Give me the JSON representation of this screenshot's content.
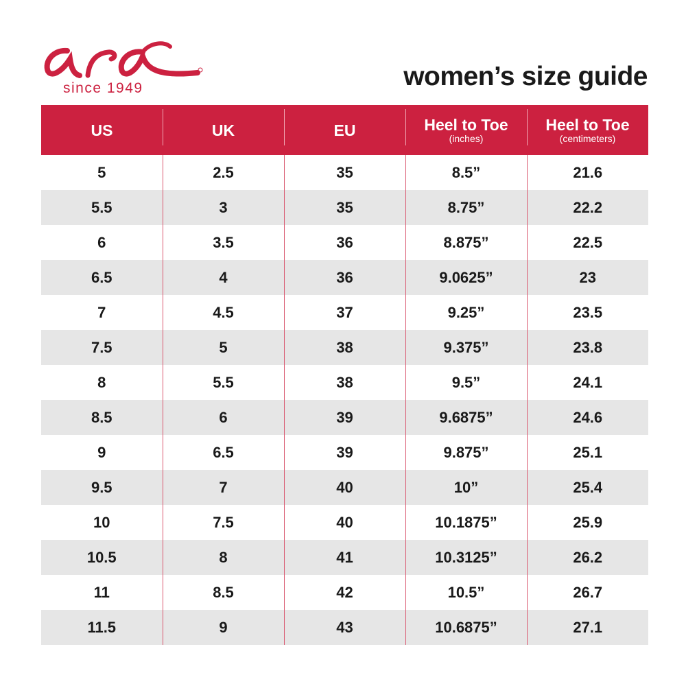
{
  "brand": {
    "logo_text": "ara",
    "tagline": "since 1949",
    "color": "#cc2140"
  },
  "title": "women’s size guide",
  "table": {
    "headers": [
      {
        "label": "US",
        "sub": ""
      },
      {
        "label": "UK",
        "sub": ""
      },
      {
        "label": "EU",
        "sub": ""
      },
      {
        "label": "Heel to Toe",
        "sub": "(inches)"
      },
      {
        "label": "Heel to Toe",
        "sub": "(centimeters)"
      }
    ],
    "rows": [
      [
        "5",
        "2.5",
        "35",
        "8.5”",
        "21.6"
      ],
      [
        "5.5",
        "3",
        "35",
        "8.75”",
        "22.2"
      ],
      [
        "6",
        "3.5",
        "36",
        "8.875”",
        "22.5"
      ],
      [
        "6.5",
        "4",
        "36",
        "9.0625”",
        "23"
      ],
      [
        "7",
        "4.5",
        "37",
        "9.25”",
        "23.5"
      ],
      [
        "7.5",
        "5",
        "38",
        "9.375”",
        "23.8"
      ],
      [
        "8",
        "5.5",
        "38",
        "9.5”",
        "24.1"
      ],
      [
        "8.5",
        "6",
        "39",
        "9.6875”",
        "24.6"
      ],
      [
        "9",
        "6.5",
        "39",
        "9.875”",
        "25.1"
      ],
      [
        "9.5",
        "7",
        "40",
        "10”",
        "25.4"
      ],
      [
        "10",
        "7.5",
        "40",
        "10.1875”",
        "25.9"
      ],
      [
        "10.5",
        "8",
        "41",
        "10.3125”",
        "26.2"
      ],
      [
        "11",
        "8.5",
        "42",
        "10.5”",
        "26.7"
      ],
      [
        "11.5",
        "9",
        "43",
        "10.6875”",
        "27.1"
      ]
    ]
  }
}
